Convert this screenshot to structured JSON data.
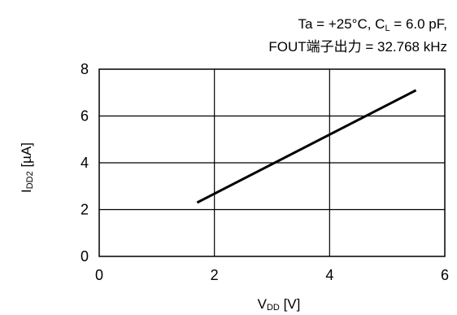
{
  "chart_data": {
    "type": "line",
    "conditions": {
      "line1": {
        "text_a": "Ta = +25°C, C",
        "sub": "L",
        "text_b": " = 6.0 pF,"
      },
      "line2": "FOUT端子出力 = 32.768 kHz"
    },
    "xlabel": {
      "main": "V",
      "sub": "DD",
      "rest": " [V]"
    },
    "ylabel": {
      "main": "I",
      "sub": "DD2",
      "rest": " [µA]"
    },
    "xlim": [
      0,
      6
    ],
    "ylim": [
      0,
      8
    ],
    "xticks": [
      "0",
      "2",
      "4",
      "6"
    ],
    "yticks": [
      "0",
      "2",
      "4",
      "6",
      "8"
    ],
    "grid": true,
    "series": [
      {
        "x": [
          1.7,
          5.5
        ],
        "y": [
          2.3,
          7.1
        ]
      }
    ]
  }
}
